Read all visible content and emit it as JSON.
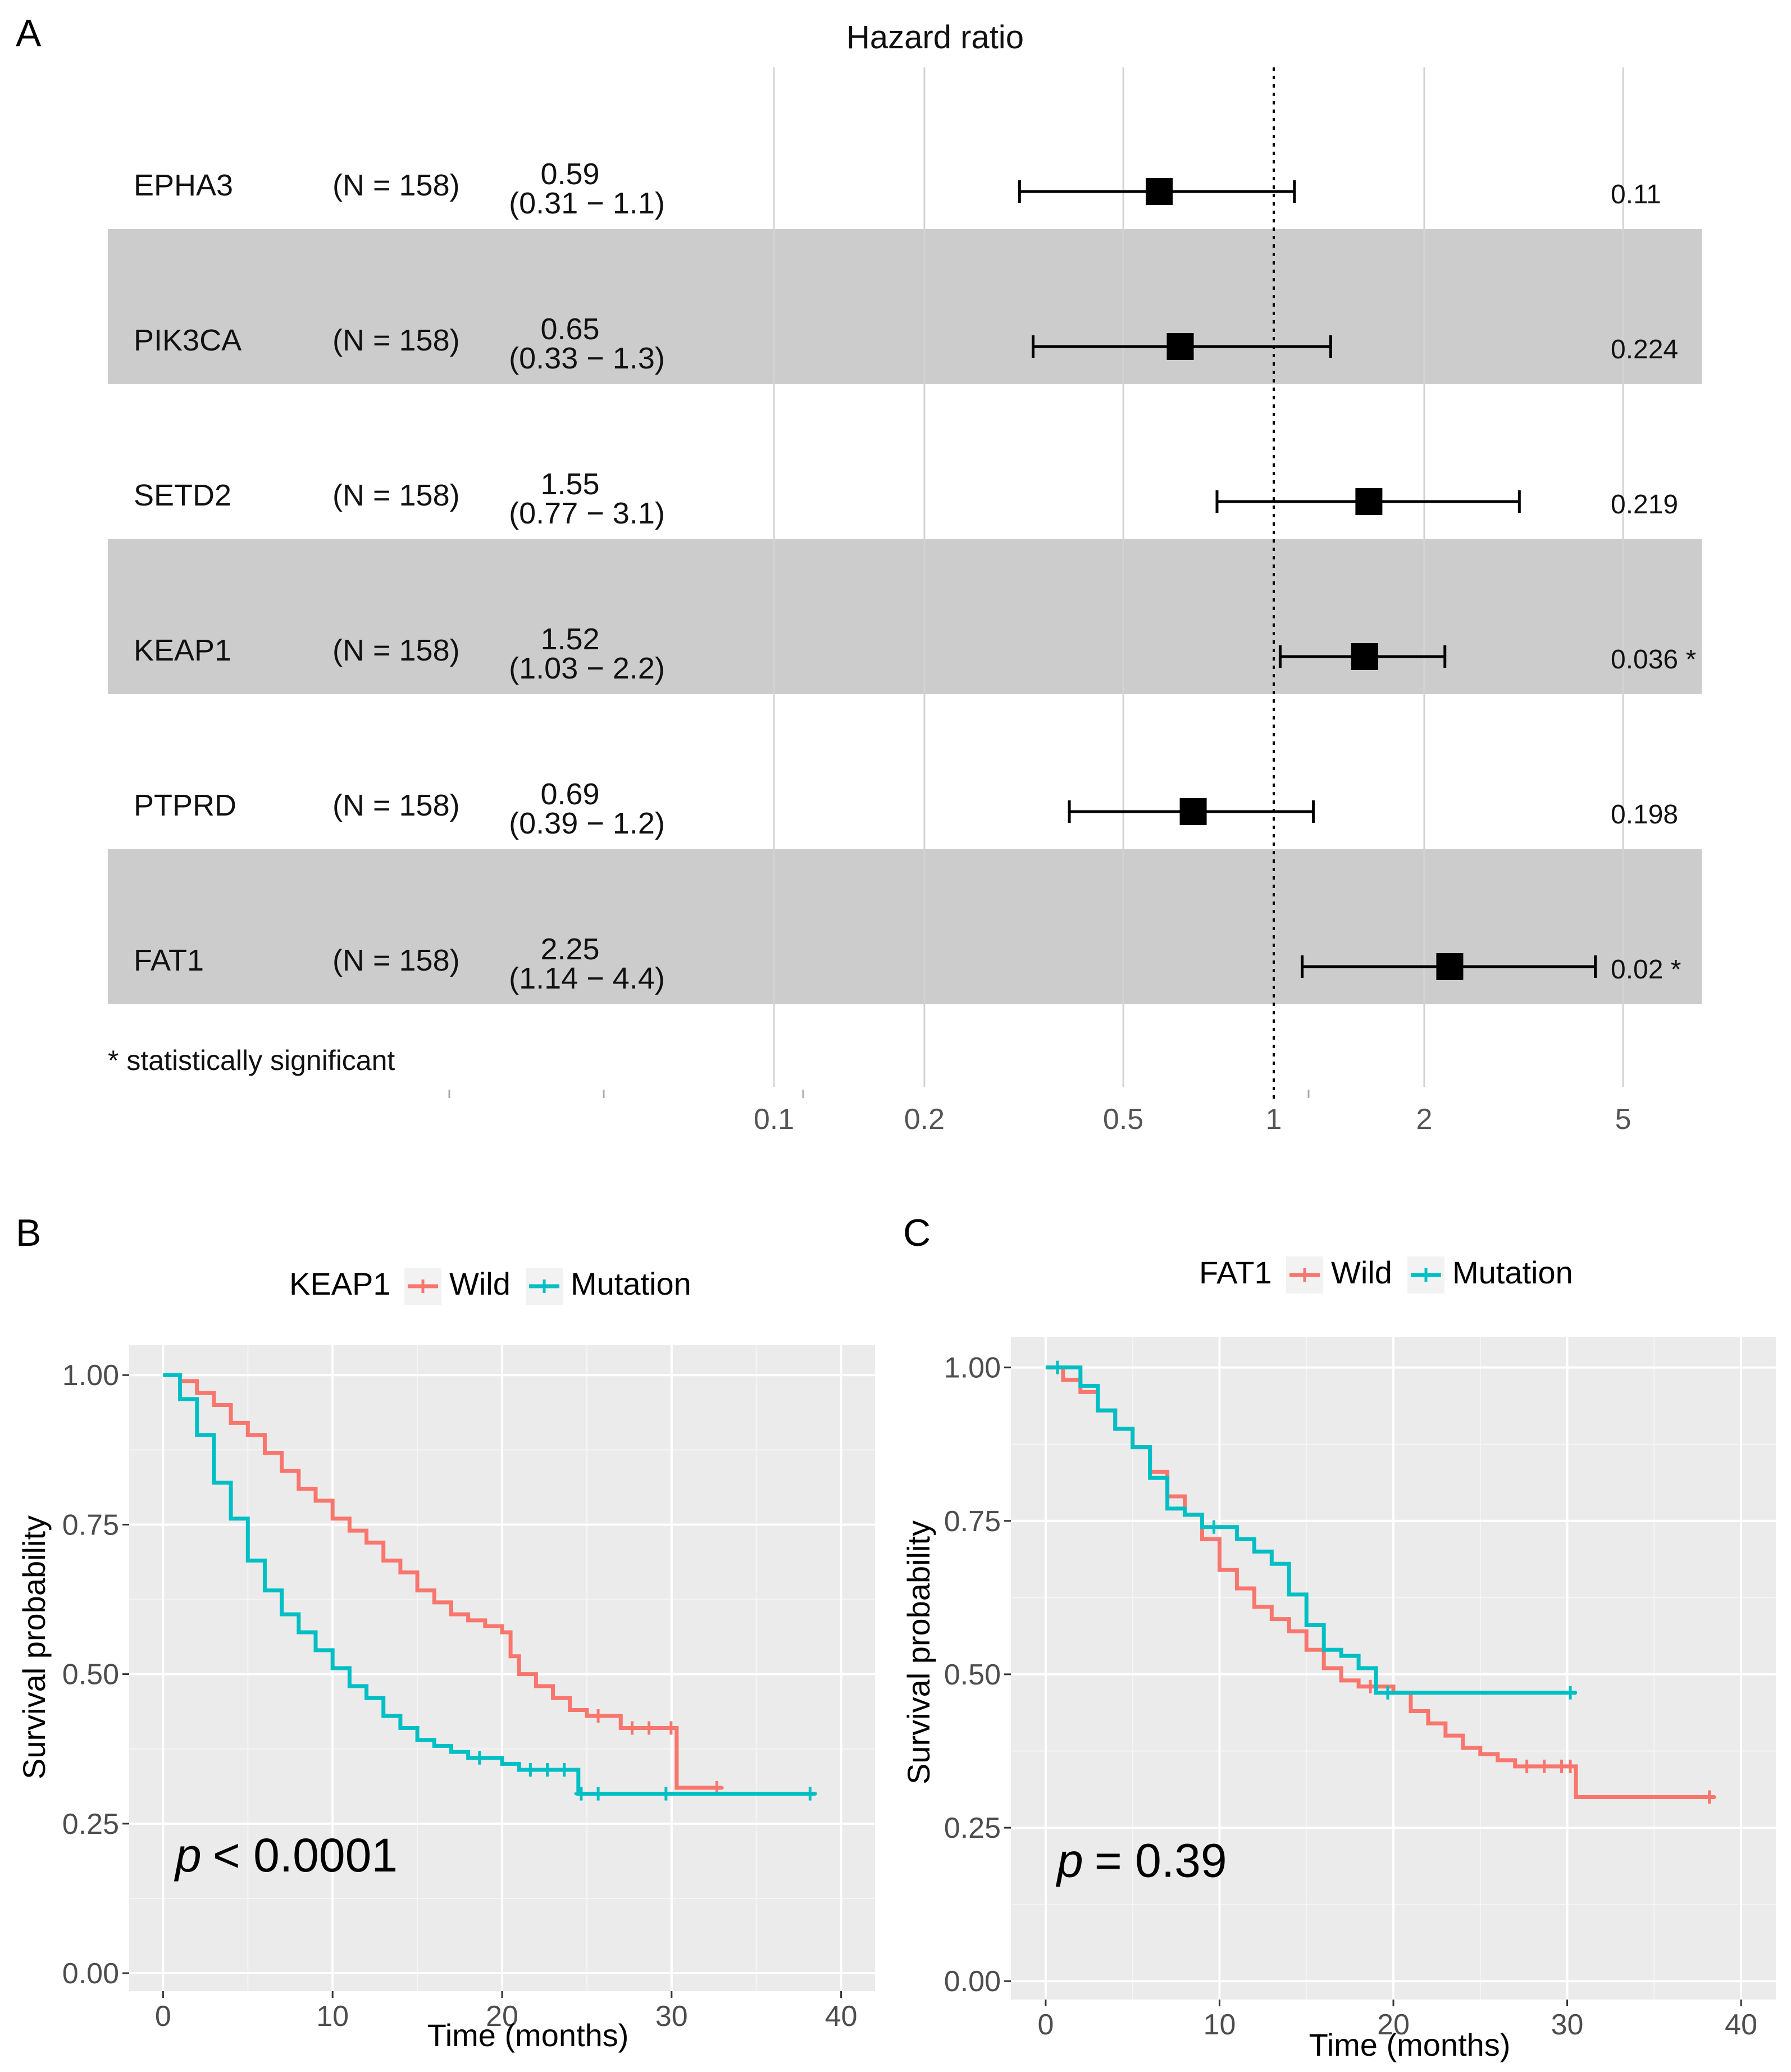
{
  "chart_data": [
    {
      "type": "forest",
      "panel_label": "A",
      "title": "Hazard ratio",
      "footnote": "* statistically significant",
      "x_scale": "log",
      "reference_line": 1,
      "x_ticks": [
        "0.1",
        "0.2",
        "0.5",
        "1",
        "2",
        "5"
      ],
      "rows": [
        {
          "gene": "EPHA3",
          "n_label": "(N = 158)",
          "hr": 0.59,
          "hr_label": "0.59",
          "ci_low": 0.31,
          "ci_high": 1.1,
          "ci_label": "(0.31 − 1.1)",
          "p_label": "0.11",
          "shaded": false
        },
        {
          "gene": "PIK3CA",
          "n_label": "(N = 158)",
          "hr": 0.65,
          "hr_label": "0.65",
          "ci_low": 0.33,
          "ci_high": 1.3,
          "ci_label": "(0.33 − 1.3)",
          "p_label": "0.224",
          "shaded": true
        },
        {
          "gene": "SETD2",
          "n_label": "(N = 158)",
          "hr": 1.55,
          "hr_label": "1.55",
          "ci_low": 0.77,
          "ci_high": 3.1,
          "ci_label": "(0.77 − 3.1)",
          "p_label": "0.219",
          "shaded": false
        },
        {
          "gene": "KEAP1",
          "n_label": "(N = 158)",
          "hr": 1.52,
          "hr_label": "1.52",
          "ci_low": 1.03,
          "ci_high": 2.2,
          "ci_label": "(1.03 − 2.2)",
          "p_label": "0.036 *",
          "shaded": true
        },
        {
          "gene": "PTPRD",
          "n_label": "(N = 158)",
          "hr": 0.69,
          "hr_label": "0.69",
          "ci_low": 0.39,
          "ci_high": 1.2,
          "ci_label": "(0.39 − 1.2)",
          "p_label": "0.198",
          "shaded": false
        },
        {
          "gene": "FAT1",
          "n_label": "(N = 158)",
          "hr": 2.25,
          "hr_label": "2.25",
          "ci_low": 1.14,
          "ci_high": 4.4,
          "ci_label": "(1.14 − 4.4)",
          "p_label": "0.02 *",
          "shaded": true
        }
      ]
    },
    {
      "type": "line",
      "subtype": "kaplan-meier",
      "panel_label": "B",
      "legend_title": "KEAP1",
      "legend_placement": "top",
      "xlabel": "Time (months)",
      "ylabel": "Survival probability",
      "xlim": [
        -2,
        42
      ],
      "ylim": [
        -0.03,
        1.05
      ],
      "x_ticks": [
        0,
        10,
        20,
        30,
        40
      ],
      "y_ticks": [
        0,
        0.25,
        0.5,
        0.75,
        1.0
      ],
      "y_tick_labels": [
        "0.00",
        "0.25",
        "0.50",
        "0.75",
        "1.00"
      ],
      "annotation": {
        "p_symbol": "p",
        "p_text": "< 0.0001"
      },
      "series": [
        {
          "name": "Wild",
          "color": "#f8766d",
          "x": [
            0,
            1,
            2,
            3,
            4,
            5,
            6,
            7,
            8,
            9,
            10,
            11,
            12,
            13,
            14,
            15,
            16,
            17,
            18,
            19,
            20,
            20.5,
            21,
            22,
            23,
            24,
            25,
            26,
            27,
            28,
            29,
            30.3,
            30.3,
            33
          ],
          "y": [
            1.0,
            0.99,
            0.97,
            0.95,
            0.92,
            0.9,
            0.87,
            0.84,
            0.81,
            0.79,
            0.76,
            0.74,
            0.72,
            0.69,
            0.67,
            0.64,
            0.62,
            0.6,
            0.59,
            0.58,
            0.57,
            0.53,
            0.5,
            0.48,
            0.46,
            0.44,
            0.43,
            0.43,
            0.41,
            0.41,
            0.41,
            0.41,
            0.31,
            0.31
          ]
        },
        {
          "name": "Mutation",
          "color": "#00bfc4",
          "x": [
            0,
            1,
            2,
            3,
            4,
            5,
            6,
            7,
            8,
            9,
            10,
            11,
            12,
            13,
            14,
            15,
            16,
            17,
            18,
            19,
            20,
            21,
            22,
            23,
            24,
            24.5,
            25,
            26,
            30,
            38.5
          ],
          "y": [
            1.0,
            0.96,
            0.9,
            0.82,
            0.76,
            0.69,
            0.64,
            0.6,
            0.57,
            0.54,
            0.51,
            0.48,
            0.46,
            0.43,
            0.41,
            0.39,
            0.38,
            0.37,
            0.36,
            0.36,
            0.35,
            0.34,
            0.34,
            0.34,
            0.34,
            0.3,
            0.3,
            0.3,
            0.3,
            0.3
          ]
        }
      ]
    },
    {
      "type": "line",
      "subtype": "kaplan-meier",
      "panel_label": "C",
      "legend_title": "FAT1",
      "legend_placement": "top",
      "xlabel": "Time (months)",
      "ylabel": "Survival probability",
      "xlim": [
        -2,
        42
      ],
      "ylim": [
        -0.03,
        1.05
      ],
      "x_ticks": [
        0,
        10,
        20,
        30,
        40
      ],
      "y_ticks": [
        0,
        0.25,
        0.5,
        0.75,
        1.0
      ],
      "y_tick_labels": [
        "0.00",
        "0.25",
        "0.50",
        "0.75",
        "1.00"
      ],
      "annotation": {
        "p_symbol": "p",
        "p_text": "= 0.39"
      },
      "series": [
        {
          "name": "Wild",
          "color": "#f8766d",
          "x": [
            0,
            1,
            2,
            3,
            4,
            5,
            6,
            7,
            8,
            9,
            10,
            11,
            12,
            13,
            14,
            15,
            16,
            17,
            18,
            19,
            20,
            21,
            22,
            23,
            24,
            25,
            26,
            27,
            28,
            29,
            30,
            30.5,
            30.5,
            38.5
          ],
          "y": [
            1.0,
            0.98,
            0.96,
            0.93,
            0.9,
            0.87,
            0.83,
            0.79,
            0.76,
            0.72,
            0.67,
            0.64,
            0.61,
            0.59,
            0.57,
            0.54,
            0.51,
            0.49,
            0.48,
            0.48,
            0.47,
            0.44,
            0.42,
            0.4,
            0.38,
            0.37,
            0.36,
            0.35,
            0.35,
            0.35,
            0.35,
            0.35,
            0.3,
            0.3
          ]
        },
        {
          "name": "Mutation",
          "color": "#00bfc4",
          "x": [
            0,
            1,
            2,
            3,
            4,
            5,
            6,
            7,
            8,
            9,
            10,
            11,
            12,
            13,
            14,
            15,
            16,
            17,
            18,
            19,
            20,
            30.5
          ],
          "y": [
            1.0,
            1.0,
            0.97,
            0.93,
            0.9,
            0.87,
            0.82,
            0.77,
            0.76,
            0.74,
            0.74,
            0.72,
            0.7,
            0.68,
            0.63,
            0.58,
            0.54,
            0.53,
            0.51,
            0.47,
            0.47,
            0.47
          ]
        }
      ]
    }
  ]
}
